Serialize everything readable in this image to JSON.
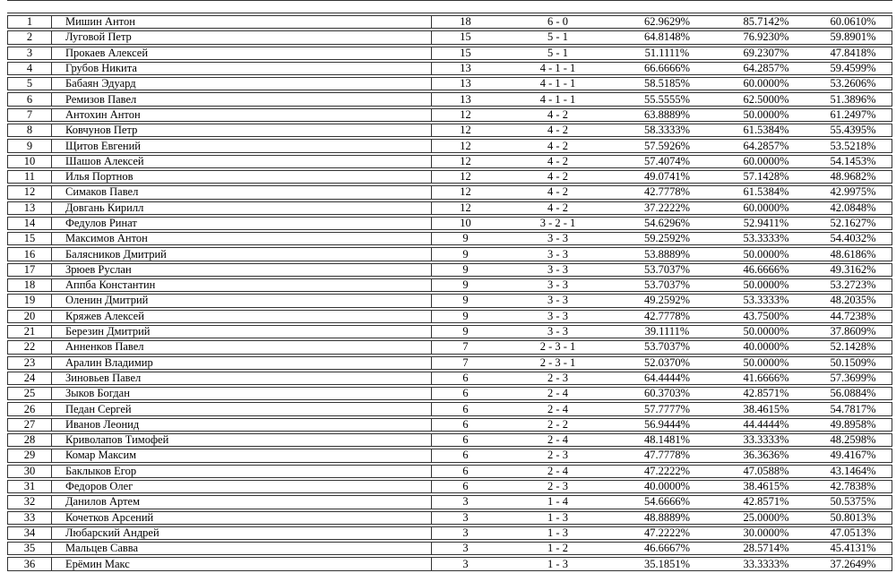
{
  "colors": {
    "background": "#ffffff",
    "border": "#333333",
    "text": "#000000"
  },
  "table": {
    "description": "player-standings-table",
    "columns": [
      "rank",
      "name",
      "points",
      "record",
      "pct1",
      "pct2",
      "pct3"
    ],
    "rows": [
      {
        "rank": "1",
        "name": "Мишин Антон",
        "points": "18",
        "record": "6 - 0",
        "pct1": "62.9629%",
        "pct2": "85.7142%",
        "pct3": "60.0610%"
      },
      {
        "rank": "2",
        "name": "Луговой Петр",
        "points": "15",
        "record": "5 - 1",
        "pct1": "64.8148%",
        "pct2": "76.9230%",
        "pct3": "59.8901%"
      },
      {
        "rank": "3",
        "name": "Прокаев Алексей",
        "points": "15",
        "record": "5 - 1",
        "pct1": "51.1111%",
        "pct2": "69.2307%",
        "pct3": "47.8418%"
      },
      {
        "rank": "4",
        "name": "Грубов Никита",
        "points": "13",
        "record": "4 - 1 - 1",
        "pct1": "66.6666%",
        "pct2": "64.2857%",
        "pct3": "59.4599%"
      },
      {
        "rank": "5",
        "name": "Бабаян Эдуард",
        "points": "13",
        "record": "4 - 1 - 1",
        "pct1": "58.5185%",
        "pct2": "60.0000%",
        "pct3": "53.2606%"
      },
      {
        "rank": "6",
        "name": "Ремизов Павел",
        "points": "13",
        "record": "4 - 1 - 1",
        "pct1": "55.5555%",
        "pct2": "62.5000%",
        "pct3": "51.3896%"
      },
      {
        "rank": "7",
        "name": "Антохин Антон",
        "points": "12",
        "record": "4 - 2",
        "pct1": "63.8889%",
        "pct2": "50.0000%",
        "pct3": "61.2497%"
      },
      {
        "rank": "8",
        "name": "Ковчунов Петр",
        "points": "12",
        "record": "4 - 2",
        "pct1": "58.3333%",
        "pct2": "61.5384%",
        "pct3": "55.4395%"
      },
      {
        "rank": "9",
        "name": "Щитов Евгений",
        "points": "12",
        "record": "4 - 2",
        "pct1": "57.5926%",
        "pct2": "64.2857%",
        "pct3": "53.5218%"
      },
      {
        "rank": "10",
        "name": "Шашов Алексей",
        "points": "12",
        "record": "4 - 2",
        "pct1": "57.4074%",
        "pct2": "60.0000%",
        "pct3": "54.1453%"
      },
      {
        "rank": "11",
        "name": "Илья Портнов",
        "points": "12",
        "record": "4 - 2",
        "pct1": "49.0741%",
        "pct2": "57.1428%",
        "pct3": "48.9682%"
      },
      {
        "rank": "12",
        "name": "Симаков Павел",
        "points": "12",
        "record": "4 - 2",
        "pct1": "42.7778%",
        "pct2": "61.5384%",
        "pct3": "42.9975%"
      },
      {
        "rank": "13",
        "name": "Довгань Кирилл",
        "points": "12",
        "record": "4 - 2",
        "pct1": "37.2222%",
        "pct2": "60.0000%",
        "pct3": "42.0848%"
      },
      {
        "rank": "14",
        "name": "Федулов Ринат",
        "points": "10",
        "record": "3 - 2 - 1",
        "pct1": "54.6296%",
        "pct2": "52.9411%",
        "pct3": "52.1627%"
      },
      {
        "rank": "15",
        "name": "Максимов Антон",
        "points": "9",
        "record": "3 - 3",
        "pct1": "59.2592%",
        "pct2": "53.3333%",
        "pct3": "54.4032%"
      },
      {
        "rank": "16",
        "name": "Балясников Дмитрий",
        "points": "9",
        "record": "3 - 3",
        "pct1": "53.8889%",
        "pct2": "50.0000%",
        "pct3": "48.6186%"
      },
      {
        "rank": "17",
        "name": "Зрюев Руслан",
        "points": "9",
        "record": "3 - 3",
        "pct1": "53.7037%",
        "pct2": "46.6666%",
        "pct3": "49.3162%"
      },
      {
        "rank": "18",
        "name": "Аппба Константин",
        "points": "9",
        "record": "3 - 3",
        "pct1": "53.7037%",
        "pct2": "50.0000%",
        "pct3": "53.2723%"
      },
      {
        "rank": "19",
        "name": "Оленин Дмитрий",
        "points": "9",
        "record": "3 - 3",
        "pct1": "49.2592%",
        "pct2": "53.3333%",
        "pct3": "48.2035%"
      },
      {
        "rank": "20",
        "name": "Кряжев Алексей",
        "points": "9",
        "record": "3 - 3",
        "pct1": "42.7778%",
        "pct2": "43.7500%",
        "pct3": "44.7238%"
      },
      {
        "rank": "21",
        "name": "Березин Дмитрий",
        "points": "9",
        "record": "3 - 3",
        "pct1": "39.1111%",
        "pct2": "50.0000%",
        "pct3": "37.8609%"
      },
      {
        "rank": "22",
        "name": "Анненков Павел",
        "points": "7",
        "record": "2 - 3 - 1",
        "pct1": "53.7037%",
        "pct2": "40.0000%",
        "pct3": "52.1428%"
      },
      {
        "rank": "23",
        "name": "Аралин Владимир",
        "points": "7",
        "record": "2 - 3 - 1",
        "pct1": "52.0370%",
        "pct2": "50.0000%",
        "pct3": "50.1509%"
      },
      {
        "rank": "24",
        "name": "Зиновьев Павел",
        "points": "6",
        "record": "2 - 3",
        "pct1": "64.4444%",
        "pct2": "41.6666%",
        "pct3": "57.3699%"
      },
      {
        "rank": "25",
        "name": "Зыков Богдан",
        "points": "6",
        "record": "2 - 4",
        "pct1": "60.3703%",
        "pct2": "42.8571%",
        "pct3": "56.0884%"
      },
      {
        "rank": "26",
        "name": "Педан Сергей",
        "points": "6",
        "record": "2 - 4",
        "pct1": "57.7777%",
        "pct2": "38.4615%",
        "pct3": "54.7817%"
      },
      {
        "rank": "27",
        "name": "Иванов Леонид",
        "points": "6",
        "record": "2 - 2",
        "pct1": "56.9444%",
        "pct2": "44.4444%",
        "pct3": "49.8958%"
      },
      {
        "rank": "28",
        "name": "Криволапов Тимофей",
        "points": "6",
        "record": "2 - 4",
        "pct1": "48.1481%",
        "pct2": "33.3333%",
        "pct3": "48.2598%"
      },
      {
        "rank": "29",
        "name": "Комар Максим",
        "points": "6",
        "record": "2 - 3",
        "pct1": "47.7778%",
        "pct2": "36.3636%",
        "pct3": "49.4167%"
      },
      {
        "rank": "30",
        "name": "Баклыков Егор",
        "points": "6",
        "record": "2 - 4",
        "pct1": "47.2222%",
        "pct2": "47.0588%",
        "pct3": "43.1464%"
      },
      {
        "rank": "31",
        "name": "Федоров Олег",
        "points": "6",
        "record": "2 - 3",
        "pct1": "40.0000%",
        "pct2": "38.4615%",
        "pct3": "42.7838%"
      },
      {
        "rank": "32",
        "name": "Данилов Артем",
        "points": "3",
        "record": "1 - 4",
        "pct1": "54.6666%",
        "pct2": "42.8571%",
        "pct3": "50.5375%"
      },
      {
        "rank": "33",
        "name": "Кочетков Арсений",
        "points": "3",
        "record": "1 - 3",
        "pct1": "48.8889%",
        "pct2": "25.0000%",
        "pct3": "50.8013%"
      },
      {
        "rank": "34",
        "name": "Любарский Андрей",
        "points": "3",
        "record": "1 - 3",
        "pct1": "47.2222%",
        "pct2": "30.0000%",
        "pct3": "47.0513%"
      },
      {
        "rank": "35",
        "name": "Мальцев Савва",
        "points": "3",
        "record": "1 - 2",
        "pct1": "46.6667%",
        "pct2": "28.5714%",
        "pct3": "45.4131%"
      },
      {
        "rank": "36",
        "name": "Ерёмин Макс",
        "points": "3",
        "record": "1 - 3",
        "pct1": "35.1851%",
        "pct2": "33.3333%",
        "pct3": "37.2649%"
      }
    ]
  }
}
